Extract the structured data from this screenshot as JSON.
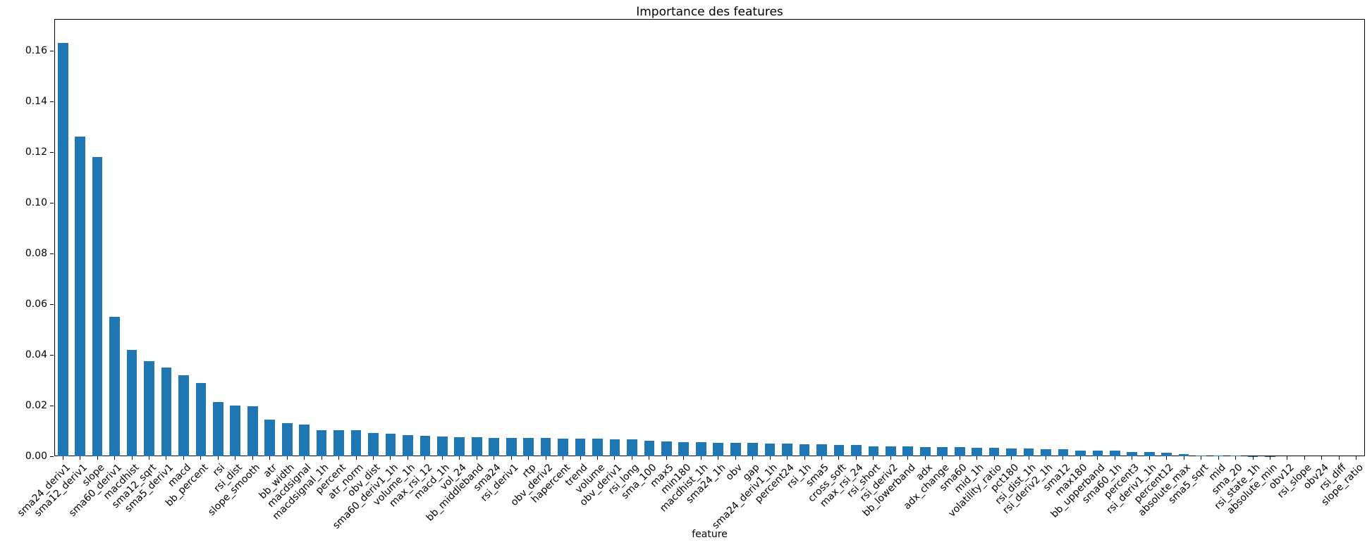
{
  "chart_data": {
    "type": "bar",
    "title": "Importance des features",
    "xlabel": "feature",
    "ylabel": "",
    "bar_color": "#1f77b4",
    "grid": false,
    "legend": null,
    "ylim": [
      0,
      0.1725
    ],
    "yticks": [
      0.0,
      0.02,
      0.04,
      0.06,
      0.08,
      0.1,
      0.12,
      0.14,
      0.16
    ],
    "categories": [
      "sma24_deriv1",
      "sma12_deriv1",
      "slope",
      "sma60_deriv1",
      "macdhist",
      "sma12_sqrt",
      "sma5_deriv1",
      "macd",
      "bb_percent",
      "rsi",
      "rsi_dist",
      "slope_smooth",
      "atr",
      "bb_width",
      "macdsignal",
      "macdsignal_1h",
      "percent",
      "atr_norm",
      "obv_dist",
      "sma60_deriv1_1h",
      "volume_1h",
      "max_rsi_12",
      "macd_1h",
      "vol_24",
      "bb_middleband",
      "sma24",
      "rsi_deriv1",
      "rtp",
      "obv_deriv2",
      "hapercent",
      "trend",
      "volume",
      "obv_deriv1",
      "rsi_long",
      "sma_100",
      "max5",
      "min180",
      "macdhist_1h",
      "sma24_1h",
      "obv",
      "gap",
      "sma24_deriv1_1h",
      "percent24",
      "rsi_1h",
      "sma5",
      "cross_soft",
      "max_rsi_24",
      "rsi_short",
      "rsi_deriv2",
      "bb_lowerband",
      "adx",
      "adx_change",
      "sma60",
      "mid_1h",
      "volatility_ratio",
      "pct180",
      "rsi_dist_1h",
      "rsi_deriv2_1h",
      "sma12",
      "max180",
      "bb_upperband",
      "sma60_1h",
      "percent3",
      "rsi_deriv1_1h",
      "percent12",
      "absolute_max",
      "sma5_sqrt",
      "mid",
      "sma_20",
      "rsi_state_1h",
      "absolute_min",
      "obv12",
      "rsi_slope",
      "obv24",
      "rsi_diff",
      "slope_ratio"
    ],
    "values": [
      0.163,
      0.126,
      0.118,
      0.055,
      0.042,
      0.0375,
      0.035,
      0.032,
      0.029,
      0.0213,
      0.0199,
      0.0197,
      0.0145,
      0.0131,
      0.0125,
      0.0104,
      0.0103,
      0.0102,
      0.0093,
      0.0088,
      0.0084,
      0.008,
      0.0079,
      0.0076,
      0.0074,
      0.0073,
      0.0072,
      0.0071,
      0.0071,
      0.007,
      0.007,
      0.007,
      0.0068,
      0.0067,
      0.0061,
      0.0058,
      0.0056,
      0.0055,
      0.0053,
      0.0052,
      0.0052,
      0.0051,
      0.0049,
      0.0048,
      0.0046,
      0.0045,
      0.0044,
      0.004,
      0.0039,
      0.0039,
      0.0036,
      0.0036,
      0.0035,
      0.0033,
      0.0033,
      0.0031,
      0.003,
      0.0028,
      0.0028,
      0.0023,
      0.0022,
      0.0021,
      0.0017,
      0.0017,
      0.0015,
      0.0007,
      0.0003,
      0.0002,
      0.00015,
      0.0001,
      8e-05,
      6e-05,
      5e-05,
      4e-05,
      3e-05,
      2e-05
    ]
  }
}
